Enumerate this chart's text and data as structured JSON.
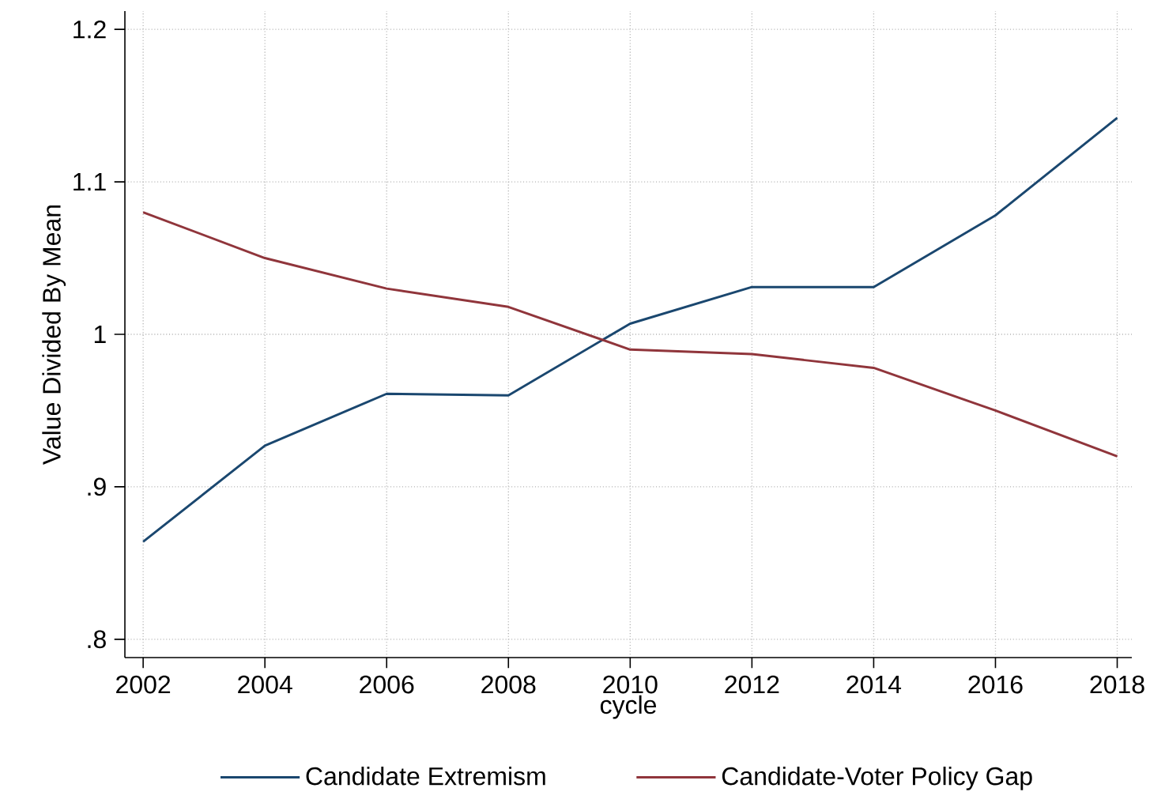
{
  "chart_data": {
    "type": "line",
    "xlabel": "cycle",
    "ylabel": "Value Divided By Mean",
    "x": [
      2002,
      2004,
      2006,
      2008,
      2010,
      2012,
      2014,
      2016,
      2018
    ],
    "series": [
      {
        "name": "Candidate Extremism",
        "color": "#1a476f",
        "values": [
          0.864,
          0.927,
          0.961,
          0.96,
          1.007,
          1.031,
          1.031,
          1.078,
          1.142
        ]
      },
      {
        "name": "Candidate-Voter Policy Gap",
        "color": "#90353b",
        "values": [
          1.08,
          1.05,
          1.03,
          1.018,
          0.99,
          0.987,
          0.978,
          0.95,
          0.92
        ]
      }
    ],
    "xlim": [
      2001.7,
      2018.24
    ],
    "ylim": [
      0.788,
      1.212
    ],
    "xticks": [
      2002,
      2004,
      2006,
      2008,
      2010,
      2012,
      2014,
      2016,
      2018
    ],
    "yticks": [
      {
        "value": 0.8,
        "label": ".8"
      },
      {
        "value": 0.9,
        "label": ".9"
      },
      1,
      1.1,
      1.2
    ],
    "grid": true,
    "legend": "bottom",
    "line_style": "solid"
  }
}
